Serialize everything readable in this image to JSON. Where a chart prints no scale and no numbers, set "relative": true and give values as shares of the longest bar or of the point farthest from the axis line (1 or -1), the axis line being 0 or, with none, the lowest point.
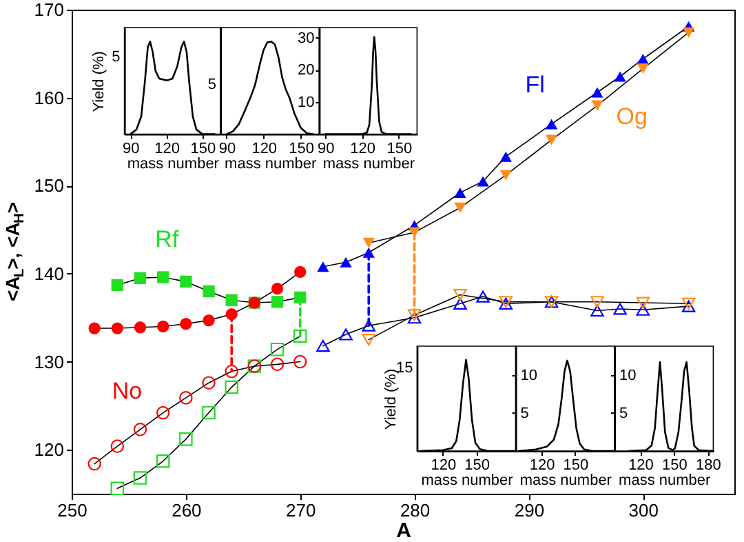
{
  "chart_data": [
    {
      "type": "line",
      "xlabel": "A",
      "ylabel": "<A$_{L}$>, <A$_{H}$>",
      "xlim": [
        250,
        308
      ],
      "ylim": [
        115,
        170
      ],
      "xticks": [
        250,
        260,
        270,
        280,
        290,
        300
      ],
      "yticks": [
        120,
        130,
        140,
        150,
        160,
        170
      ],
      "series": [
        {
          "name": "Rf",
          "color": "#22dd22",
          "marker": "square",
          "x": [
            254,
            256,
            258,
            260,
            262,
            264,
            266,
            268,
            270
          ],
          "values": [
            138.7,
            139.5,
            139.6,
            139.1,
            138.0,
            137.0,
            136.7,
            136.8,
            137.3
          ]
        },
        {
          "color": "#22dd22",
          "marker": "square",
          "x": [
            254,
            256,
            258,
            260,
            262,
            264,
            266,
            268,
            270
          ],
          "values": [
            115.6,
            116.8,
            118.7,
            121.2,
            124.2,
            127.1,
            129.5,
            131.4,
            132.9
          ]
        },
        {
          "name": "No",
          "color": "#ff0000",
          "marker": "circle",
          "x": [
            252,
            254,
            256,
            258,
            260,
            262,
            264,
            266,
            268,
            270
          ],
          "values": [
            133.8,
            133.8,
            133.9,
            134.0,
            134.3,
            134.7,
            135.4,
            136.7,
            138.3,
            140.2
          ]
        },
        {
          "color": "#ff0000",
          "marker": "circle",
          "x": [
            252,
            254,
            256,
            258,
            260,
            262,
            264,
            266,
            268,
            270
          ],
          "values": [
            118.4,
            120.4,
            122.3,
            124.2,
            125.9,
            127.6,
            128.9,
            129.5,
            129.7,
            130.0
          ]
        },
        {
          "name": "Fl",
          "color": "#0000ff",
          "marker": "triangle",
          "x": [
            272,
            274,
            276,
            280,
            284,
            286,
            288,
            292,
            296,
            298,
            300,
            304
          ],
          "values": [
            140.8,
            141.3,
            142.4,
            145.5,
            149.2,
            150.5,
            153.3,
            157.0,
            160.6,
            162.4,
            164.4,
            168.1
          ]
        },
        {
          "color": "#0000ff",
          "marker": "triangle",
          "x": [
            272,
            274,
            276,
            280,
            284,
            286,
            288,
            292,
            296,
            298,
            300,
            304
          ],
          "values": [
            131.8,
            133.1,
            134.1,
            135.0,
            136.6,
            137.4,
            136.6,
            136.8,
            135.8,
            136.0,
            135.9,
            136.3
          ]
        },
        {
          "name": "Og",
          "color": "#ff8c1a",
          "marker": "triangle-down",
          "x": [
            276,
            280,
            284,
            288,
            292,
            296,
            300,
            304
          ],
          "values": [
            143.5,
            144.7,
            147.5,
            151.2,
            155.2,
            159.1,
            163.3,
            167.4
          ]
        },
        {
          "color": "#ff8c1a",
          "marker": "triangle-down",
          "x": [
            276,
            280,
            284,
            288,
            292,
            296,
            300,
            304
          ],
          "values": [
            132.5,
            135.3,
            137.6,
            136.8,
            136.8,
            136.8,
            136.7,
            136.6
          ]
        },
        {
          "color": "#ff0000",
          "marker": "none",
          "line_style": "dashed",
          "x": [
            264,
            264
          ],
          "values": [
            135.4,
            128.9
          ]
        },
        {
          "color": "#22dd22",
          "marker": "none",
          "line_style": "dashed",
          "x": [
            270,
            270
          ],
          "values": [
            137.3,
            132.9
          ]
        },
        {
          "color": "#0000ff",
          "marker": "none",
          "line_style": "dashed",
          "x": [
            276,
            276
          ],
          "values": [
            142.4,
            134.1
          ]
        },
        {
          "color": "#ff8c1a",
          "marker": "none",
          "line_style": "dashed",
          "x": [
            280,
            280
          ],
          "values": [
            144.7,
            135.3
          ]
        }
      ]
    },
    {
      "type": "line",
      "relative": true,
      "xlabel": "mass number",
      "ylabel": "Yield (%)",
      "xlim": [
        85,
        165
      ],
      "xticks": [
        90,
        120,
        150
      ],
      "annotations": [
        "5"
      ],
      "series": [
        {
          "color": "#000000",
          "x": [
            90,
            95,
            99,
            102,
            104.5,
            106.4,
            108.5,
            111,
            114,
            120.5,
            125,
            129,
            132.5,
            134.6,
            136.8,
            139,
            142,
            145,
            150,
            160
          ],
          "values": [
            0,
            0.05,
            0.19,
            0.56,
            0.94,
            1,
            0.89,
            0.68,
            0.6,
            0.58,
            0.6,
            0.73,
            0.94,
            1,
            0.89,
            0.56,
            0.19,
            0.05,
            0,
            0
          ]
        }
      ]
    },
    {
      "type": "line",
      "relative": true,
      "xlabel": "mass number",
      "xlim": [
        85,
        165
      ],
      "xticks": [
        90,
        120,
        150
      ],
      "annotations": [
        "5"
      ],
      "series": [
        {
          "color": "#000000",
          "x": [
            90,
            95,
            100,
            105,
            110,
            113,
            117,
            120,
            123,
            126,
            129,
            132,
            135,
            138,
            141,
            145,
            150,
            155,
            160
          ],
          "values": [
            0,
            0.03,
            0.11,
            0.26,
            0.42,
            0.53,
            0.76,
            0.91,
            0.99,
            1,
            0.97,
            0.83,
            0.61,
            0.48,
            0.39,
            0.22,
            0.07,
            0.01,
            0
          ]
        }
      ]
    },
    {
      "type": "line",
      "xlabel": "mass number",
      "xlim": [
        85,
        165
      ],
      "ylim": [
        0,
        33.2
      ],
      "xticks": [
        90,
        120,
        150
      ],
      "yticks": [
        10,
        20,
        30
      ],
      "series": [
        {
          "color": "#000000",
          "x": [
            90,
            120,
            124,
            126,
            128,
            129,
            130,
            131,
            132,
            134,
            136,
            140,
            160
          ],
          "values": [
            0,
            0,
            0.5,
            3,
            15,
            25,
            30.3,
            26,
            17,
            4,
            0.7,
            0,
            0
          ]
        }
      ]
    },
    {
      "type": "line",
      "relative": true,
      "xlabel": "mass number",
      "ylabel": "Yield (%)",
      "xlim": [
        97,
        185
      ],
      "xticks": [
        120,
        150
      ],
      "annotations": [
        "15"
      ],
      "series": [
        {
          "color": "#000000",
          "x": [
            100,
            120,
            128,
            132,
            135,
            138,
            140.7,
            143,
            146,
            149,
            153,
            160,
            185
          ],
          "values": [
            0,
            0.01,
            0.03,
            0.11,
            0.34,
            0.74,
            1,
            0.8,
            0.34,
            0.09,
            0.02,
            0,
            0
          ]
        }
      ]
    },
    {
      "type": "line",
      "xlabel": "mass number",
      "xlim": [
        97,
        185
      ],
      "ylim": [
        0,
        13.8
      ],
      "xticks": [
        120,
        150
      ],
      "yticks": [
        5,
        10
      ],
      "series": [
        {
          "color": "#000000",
          "x": [
            100,
            115,
            125,
            131,
            135,
            138,
            140.5,
            142.9,
            145.5,
            148,
            151,
            154,
            158,
            165,
            185
          ],
          "values": [
            0,
            0.2,
            0.6,
            1.5,
            3.5,
            7,
            10.5,
            11.9,
            10.5,
            7,
            3,
            1,
            0.2,
            0,
            0
          ]
        }
      ]
    },
    {
      "type": "line",
      "xlabel": "mass number",
      "xlim": [
        97,
        185
      ],
      "ylim": [
        0,
        13.8
      ],
      "xticks": [
        120,
        150,
        180
      ],
      "yticks": [
        5,
        10
      ],
      "series": [
        {
          "color": "#000000",
          "x": [
            110,
            125,
            130,
            133,
            135.5,
            137.5,
            139.5,
            142,
            145,
            149,
            151,
            154,
            157,
            159,
            161.2,
            163.5,
            166,
            168,
            172,
            185
          ],
          "values": [
            0,
            0.1,
            0.7,
            3,
            8,
            11.7,
            8,
            2.5,
            0.4,
            0.1,
            0.4,
            2.5,
            7,
            10.5,
            11.7,
            8,
            3,
            0.7,
            0.1,
            0
          ]
        }
      ]
    }
  ]
}
